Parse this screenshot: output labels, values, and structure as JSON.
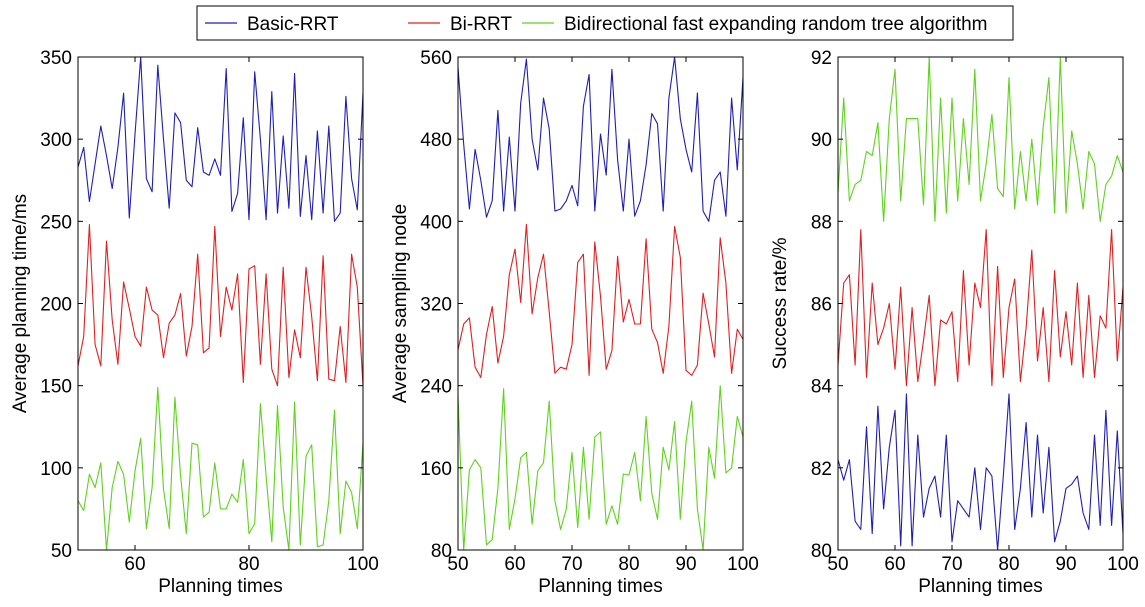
{
  "legend": {
    "placement": "top-center",
    "entries": [
      {
        "label": "Basic-RRT",
        "color": "#1f1fb4"
      },
      {
        "label": "Bi-RRT",
        "color": "#e02020"
      },
      {
        "label": "Bidirectional fast expanding random tree algorithm",
        "color": "#5fd21e"
      }
    ]
  },
  "chart_data": [
    {
      "type": "line",
      "xlabel": "Planning times",
      "ylabel": "Average planning time/ms",
      "xlim": [
        50,
        100
      ],
      "ylim": [
        50,
        350
      ],
      "xticks": [
        60,
        80,
        100
      ],
      "yticks": [
        50,
        100,
        150,
        200,
        250,
        300,
        350
      ],
      "grid": false,
      "x": [
        50,
        51,
        52,
        53,
        54,
        55,
        56,
        57,
        58,
        59,
        60,
        61,
        62,
        63,
        64,
        65,
        66,
        67,
        68,
        69,
        70,
        71,
        72,
        73,
        74,
        75,
        76,
        77,
        78,
        79,
        80,
        81,
        82,
        83,
        84,
        85,
        86,
        87,
        88,
        89,
        90,
        91,
        92,
        93,
        94,
        95,
        96,
        97,
        98,
        99,
        100
      ],
      "series": [
        {
          "name": "Basic-RRT",
          "color": "#1f1fb4",
          "values": [
            283,
            295,
            262,
            285,
            308,
            290,
            270,
            295,
            328,
            252,
            303,
            350,
            276,
            268,
            345,
            300,
            258,
            316,
            310,
            275,
            271,
            307,
            280,
            278,
            288,
            278,
            343,
            256,
            267,
            313,
            251,
            341,
            300,
            251,
            329,
            255,
            302,
            258,
            340,
            253,
            290,
            251,
            305,
            255,
            308,
            250,
            255,
            326,
            276,
            257,
            328
          ]
        },
        {
          "name": "Bi-RRT",
          "color": "#e02020",
          "values": [
            162,
            180,
            248,
            175,
            162,
            238,
            190,
            163,
            213,
            197,
            180,
            174,
            210,
            196,
            193,
            167,
            188,
            193,
            206,
            168,
            186,
            230,
            170,
            173,
            247,
            180,
            210,
            196,
            218,
            152,
            221,
            223,
            163,
            218,
            160,
            150,
            222,
            155,
            184,
            167,
            222,
            192,
            153,
            229,
            154,
            153,
            186,
            152,
            230,
            210,
            150
          ]
        },
        {
          "name": "Bidirectional fast expanding random tree algorithm",
          "color": "#5fd21e",
          "values": [
            80,
            74,
            96,
            88,
            103,
            50,
            88,
            104,
            96,
            67,
            98,
            118,
            63,
            88,
            149,
            87,
            63,
            143,
            95,
            60,
            115,
            114,
            70,
            73,
            103,
            75,
            75,
            84,
            79,
            105,
            60,
            66,
            139,
            95,
            55,
            138,
            76,
            50,
            140,
            53,
            107,
            114,
            52,
            53,
            80,
            135,
            60,
            92,
            85,
            63,
            115
          ]
        }
      ]
    },
    {
      "type": "line",
      "xlabel": "Planning times",
      "ylabel": "Average sampling node",
      "xlim": [
        50,
        100
      ],
      "ylim": [
        80,
        560
      ],
      "xticks": [
        50,
        60,
        70,
        80,
        90,
        100
      ],
      "yticks": [
        80,
        160,
        240,
        320,
        400,
        480,
        560
      ],
      "grid": false,
      "x": [
        50,
        51,
        52,
        53,
        54,
        55,
        56,
        57,
        58,
        59,
        60,
        61,
        62,
        63,
        64,
        65,
        66,
        67,
        68,
        69,
        70,
        71,
        72,
        73,
        74,
        75,
        76,
        77,
        78,
        79,
        80,
        81,
        82,
        83,
        84,
        85,
        86,
        87,
        88,
        89,
        90,
        91,
        92,
        93,
        94,
        95,
        96,
        97,
        98,
        99,
        100
      ],
      "series": [
        {
          "name": "Basic-RRT",
          "color": "#1f1fb4",
          "values": [
            550,
            475,
            412,
            470,
            440,
            404,
            420,
            508,
            410,
            482,
            410,
            515,
            558,
            480,
            450,
            520,
            490,
            410,
            412,
            420,
            435,
            415,
            512,
            543,
            410,
            485,
            445,
            548,
            460,
            410,
            480,
            405,
            420,
            455,
            505,
            495,
            410,
            520,
            560,
            500,
            470,
            448,
            525,
            410,
            400,
            440,
            448,
            405,
            520,
            450,
            540
          ]
        },
        {
          "name": "Bi-RRT",
          "color": "#e02020",
          "values": [
            275,
            300,
            306,
            258,
            248,
            290,
            317,
            262,
            288,
            348,
            373,
            321,
            397,
            310,
            345,
            368,
            312,
            252,
            258,
            256,
            280,
            360,
            368,
            250,
            380,
            327,
            256,
            274,
            366,
            302,
            324,
            300,
            300,
            383,
            295,
            282,
            252,
            298,
            395,
            365,
            255,
            250,
            260,
            330,
            300,
            268,
            384,
            340,
            252,
            295,
            285
          ]
        },
        {
          "name": "Bidirectional fast expanding random tree algorithm",
          "color": "#5fd21e",
          "values": [
            230,
            80,
            158,
            168,
            160,
            85,
            90,
            140,
            237,
            100,
            130,
            170,
            175,
            105,
            157,
            165,
            225,
            128,
            100,
            120,
            175,
            102,
            180,
            110,
            190,
            195,
            105,
            123,
            105,
            154,
            153,
            175,
            128,
            210,
            135,
            110,
            180,
            158,
            205,
            110,
            185,
            225,
            120,
            80,
            180,
            150,
            240,
            155,
            160,
            210,
            190
          ]
        }
      ]
    },
    {
      "type": "line",
      "xlabel": "Planning times",
      "ylabel": "Success rate/%",
      "xlim": [
        50,
        100
      ],
      "ylim": [
        80,
        92
      ],
      "xticks": [
        50,
        60,
        70,
        80,
        90,
        100
      ],
      "yticks": [
        80,
        82,
        84,
        86,
        88,
        90,
        92
      ],
      "grid": false,
      "x": [
        50,
        51,
        52,
        53,
        54,
        55,
        56,
        57,
        58,
        59,
        60,
        61,
        62,
        63,
        64,
        65,
        66,
        67,
        68,
        69,
        70,
        71,
        72,
        73,
        74,
        75,
        76,
        77,
        78,
        79,
        80,
        81,
        82,
        83,
        84,
        85,
        86,
        87,
        88,
        89,
        90,
        91,
        92,
        93,
        94,
        95,
        96,
        97,
        98,
        99,
        100
      ],
      "series": [
        {
          "name": "Basic-RRT",
          "color": "#1f1fb4",
          "values": [
            82.2,
            81.7,
            82.2,
            80.7,
            80.5,
            83.0,
            80.4,
            83.5,
            81.0,
            82.5,
            83.4,
            80.1,
            83.8,
            80.1,
            82.8,
            80.8,
            81.5,
            81.8,
            80.8,
            82.8,
            80.2,
            81.2,
            81.0,
            80.8,
            82.0,
            80.5,
            82.0,
            81.8,
            80.0,
            81.8,
            83.8,
            80.5,
            81.5,
            83.1,
            80.8,
            82.8,
            80.9,
            82.5,
            80.2,
            80.7,
            81.5,
            81.6,
            81.8,
            80.9,
            80.5,
            82.8,
            80.6,
            83.4,
            80.6,
            82.9,
            80.4
          ]
        },
        {
          "name": "Bi-RRT",
          "color": "#e02020",
          "values": [
            84.5,
            86.5,
            86.7,
            84.5,
            87.8,
            84.2,
            86.5,
            85.0,
            85.4,
            86.0,
            84.4,
            86.4,
            84.0,
            85.9,
            84.1,
            85.1,
            86.2,
            84.0,
            85.6,
            85.5,
            85.8,
            84.1,
            86.8,
            84.5,
            86.5,
            85.9,
            87.8,
            84.0,
            86.9,
            84.2,
            85.9,
            86.6,
            84.1,
            85.4,
            87.3,
            84.6,
            85.9,
            84.1,
            86.8,
            84.7,
            85.8,
            84.5,
            86.5,
            84.2,
            86.2,
            84.2,
            85.7,
            85.4,
            87.8,
            84.6,
            86.4
          ]
        },
        {
          "name": "Bidirectional fast expanding random tree algorithm",
          "color": "#5fd21e",
          "values": [
            88.7,
            91.0,
            88.5,
            88.9,
            89.0,
            89.7,
            89.6,
            90.4,
            88.0,
            90.5,
            91.7,
            88.5,
            90.5,
            90.5,
            90.5,
            88.4,
            92.0,
            88.0,
            91.0,
            88.2,
            91.0,
            88.5,
            90.5,
            88.9,
            91.7,
            88.5,
            89.4,
            90.6,
            88.8,
            88.6,
            91.5,
            88.3,
            89.7,
            88.5,
            90.0,
            88.4,
            90.3,
            91.5,
            88.2,
            92.0,
            88.2,
            90.2,
            89.4,
            88.3,
            89.7,
            89.4,
            88.0,
            88.9,
            89.1,
            89.6,
            89.2
          ]
        }
      ]
    }
  ]
}
